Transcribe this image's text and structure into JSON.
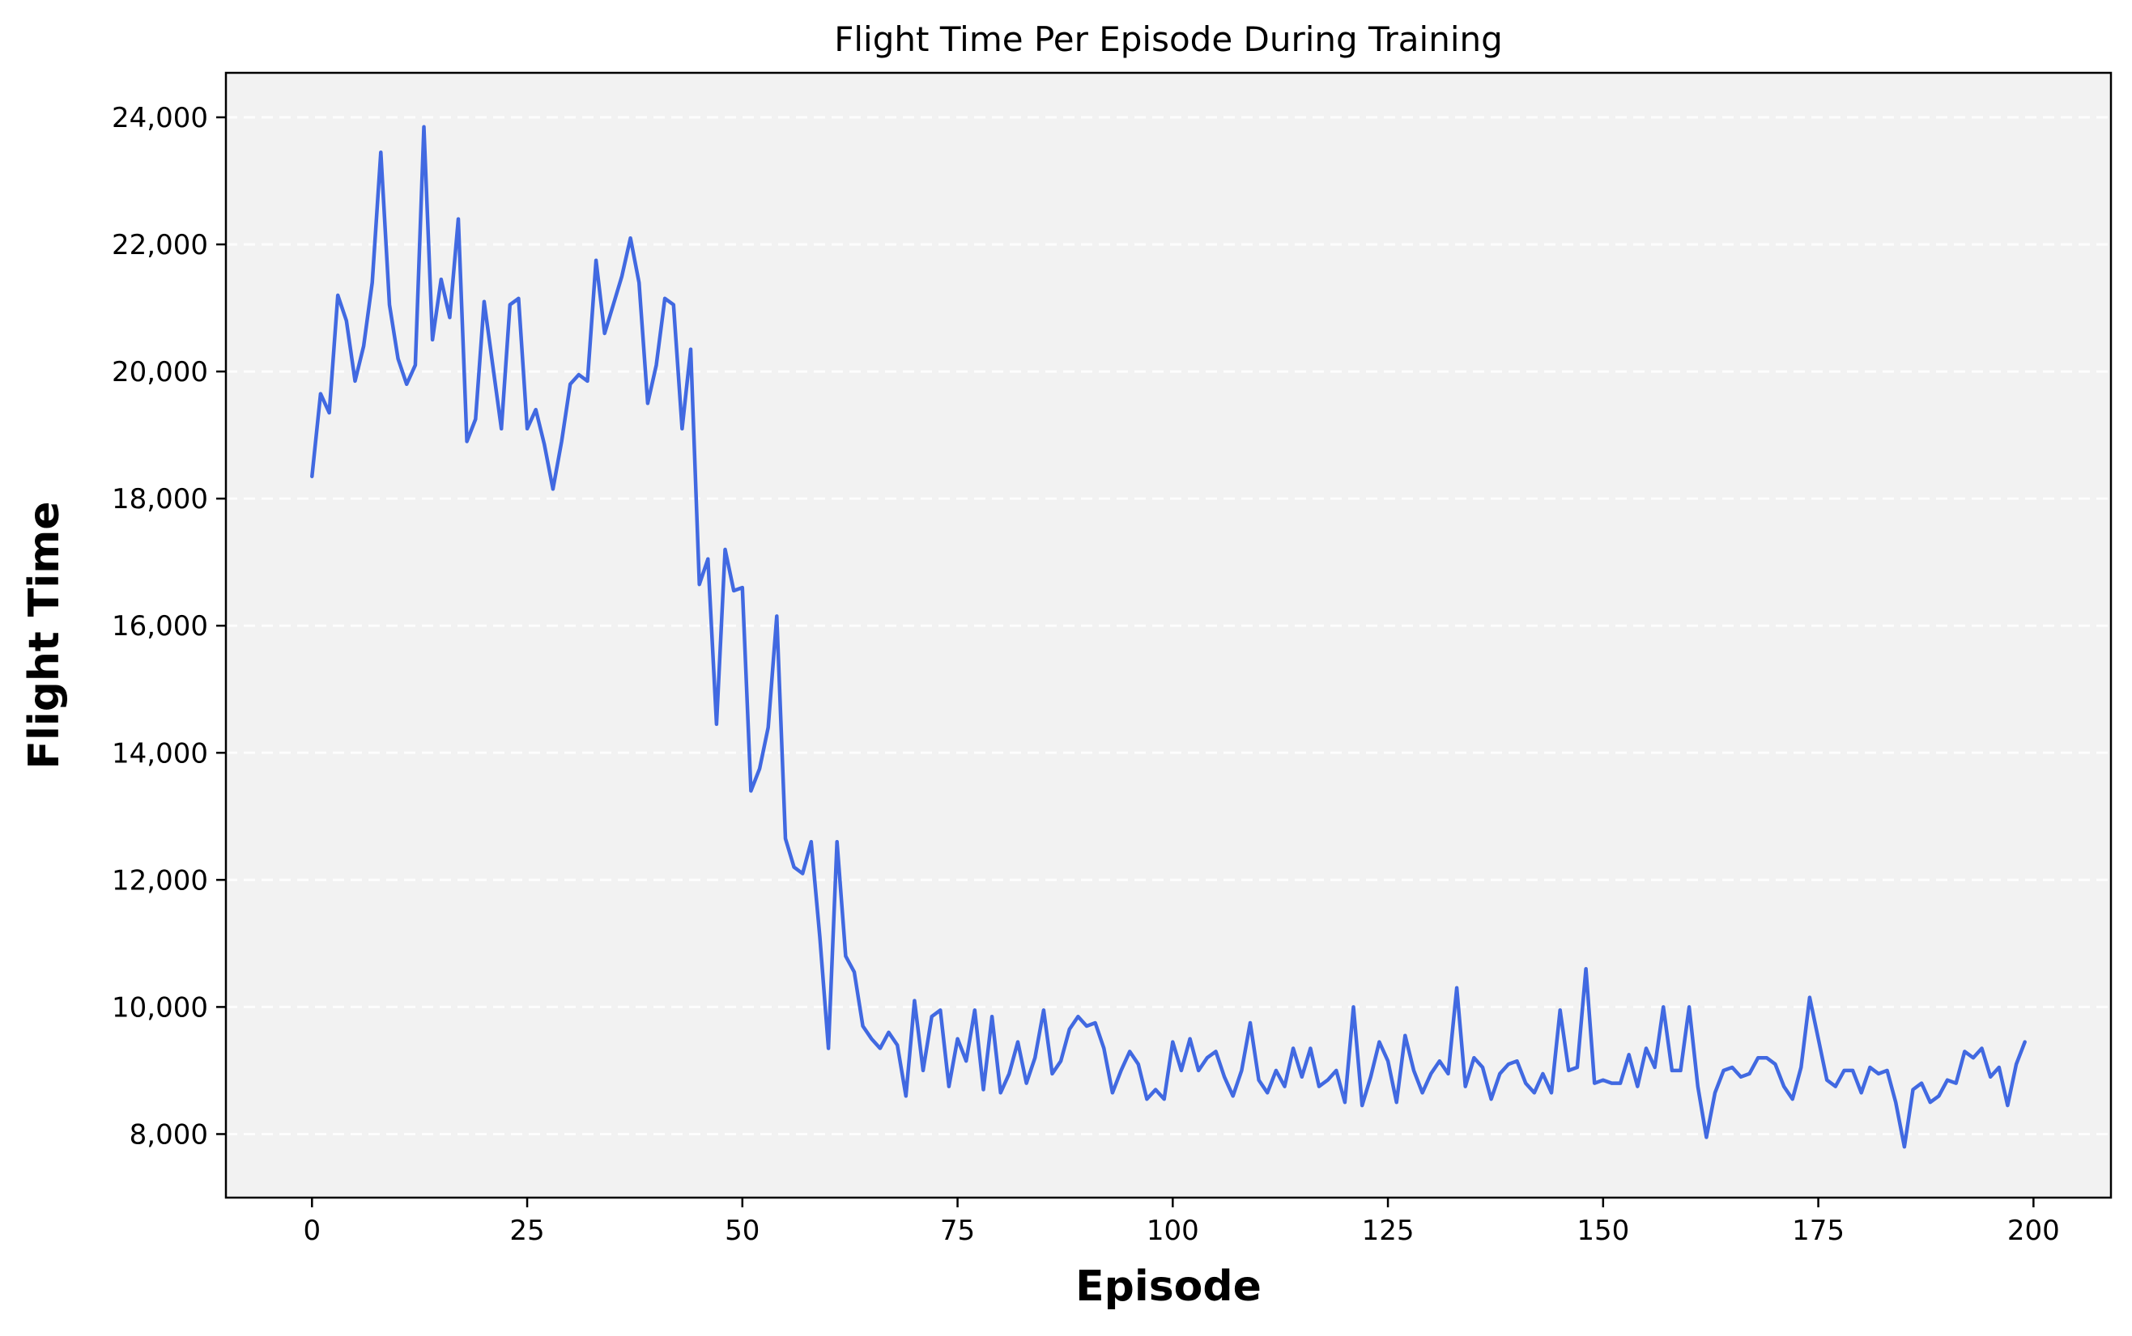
{
  "chart_data": {
    "type": "line",
    "title": "Flight Time Per Episode During Training",
    "xlabel": "Episode",
    "ylabel": "Flight Time",
    "xlim": [
      -10,
      209
    ],
    "ylim": [
      7000,
      24700
    ],
    "xticks": [
      0,
      25,
      50,
      75,
      100,
      125,
      150,
      175,
      200
    ],
    "yticks": [
      8000,
      10000,
      12000,
      14000,
      16000,
      18000,
      20000,
      22000,
      24000
    ],
    "grid": "y-dashed",
    "background": "#f2f2f2",
    "series": [
      {
        "color": "#4169e1",
        "x_start": 0,
        "x_step": 1,
        "values": [
          18350,
          19650,
          19350,
          21200,
          20800,
          19850,
          20400,
          21400,
          23450,
          21050,
          20200,
          19800,
          20100,
          23850,
          20500,
          21450,
          20850,
          22400,
          18900,
          19250,
          21100,
          20100,
          19100,
          21050,
          21150,
          19100,
          19400,
          18850,
          18150,
          18900,
          19800,
          19950,
          19850,
          21750,
          20600,
          21050,
          21500,
          22100,
          21400,
          19500,
          20100,
          21150,
          21050,
          19100,
          20350,
          16650,
          17050,
          14450,
          17200,
          16550,
          16600,
          13400,
          13750,
          14400,
          16150,
          12650,
          12200,
          12100,
          12600,
          11100,
          9350,
          12600,
          10800,
          10550,
          9700,
          9500,
          9350,
          9600,
          9400,
          8600,
          10100,
          9000,
          9850,
          9950,
          8750,
          9500,
          9150,
          9950,
          8700,
          9850,
          8650,
          8950,
          9450,
          8800,
          9200,
          9950,
          8950,
          9150,
          9650,
          9850,
          9700,
          9750,
          9350,
          8650,
          9000,
          9300,
          9100,
          8550,
          8700,
          8550,
          9450,
          9000,
          9500,
          9000,
          9200,
          9300,
          8900,
          8600,
          9000,
          9750,
          8850,
          8650,
          9000,
          8750,
          9350,
          8900,
          9350,
          8750,
          8850,
          9000,
          8500,
          10000,
          8450,
          8900,
          9450,
          9150,
          8500,
          9550,
          9000,
          8650,
          8950,
          9150,
          8950,
          10300,
          8750,
          9200,
          9050,
          8550,
          8950,
          9100,
          9150,
          8800,
          8650,
          8950,
          8650,
          9950,
          9000,
          9050,
          10600,
          8800,
          8850,
          8800,
          8800,
          9250,
          8750,
          9350,
          9050,
          10000,
          9000,
          9000,
          10000,
          8750,
          7950,
          8650,
          9000,
          9050,
          8900,
          8950,
          9200,
          9200,
          9100,
          8750,
          8550,
          9050,
          10150,
          9500,
          8850,
          8750,
          9000,
          9000,
          8650,
          9050,
          8950,
          9000,
          8500,
          7800,
          8700,
          8800,
          8500,
          8600,
          8850,
          8800,
          9300,
          9200,
          9350,
          8900,
          9050,
          8450,
          9100,
          9450
        ]
      }
    ]
  }
}
